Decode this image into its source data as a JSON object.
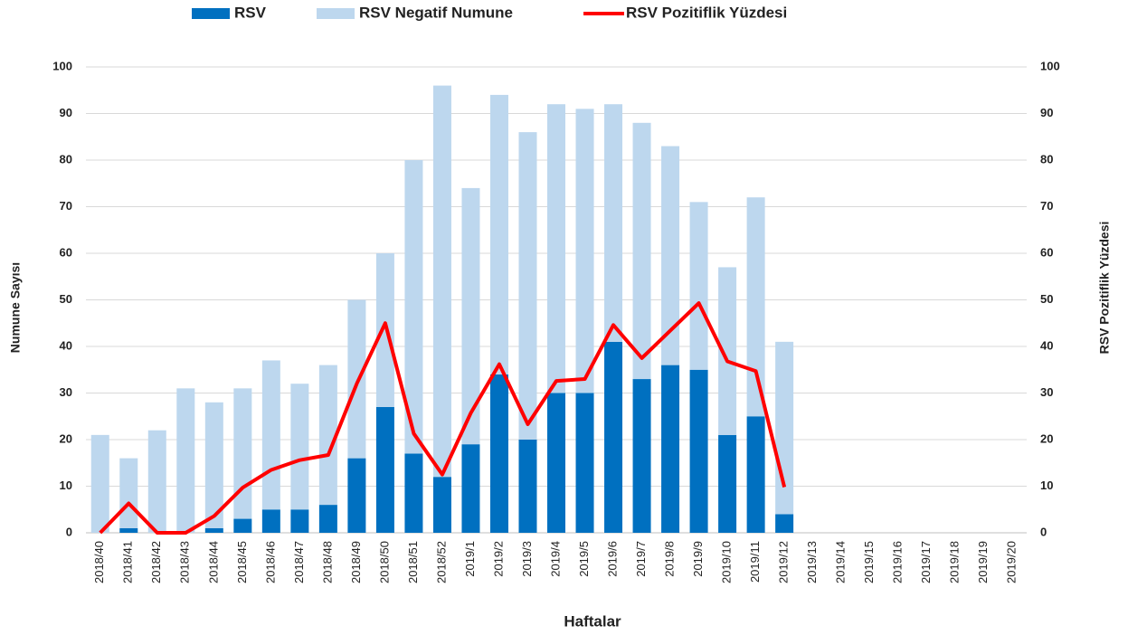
{
  "chart_data": {
    "type": "bar",
    "stacked": true,
    "categories": [
      "2018/40",
      "2018/41",
      "2018/42",
      "2018/43",
      "2018/44",
      "2018/45",
      "2018/46",
      "2018/47",
      "2018/48",
      "2018/49",
      "2018/50",
      "2018/51",
      "2018/52",
      "2019/1",
      "2019/2",
      "2019/3",
      "2019/4",
      "2019/5",
      "2019/6",
      "2019/7",
      "2019/8",
      "2019/9",
      "2019/10",
      "2019/11",
      "2019/12",
      "2019/13",
      "2019/14",
      "2019/15",
      "2019/16",
      "2019/17",
      "2019/18",
      "2019/19",
      "2019/20"
    ],
    "series": [
      {
        "name": "RSV",
        "color": "#0070c0",
        "values": [
          0,
          1,
          0,
          0,
          1,
          3,
          5,
          5,
          6,
          16,
          27,
          17,
          12,
          19,
          34,
          20,
          30,
          30,
          41,
          33,
          36,
          35,
          21,
          25,
          4,
          null,
          null,
          null,
          null,
          null,
          null,
          null,
          null
        ]
      },
      {
        "name": "RSV Negatif Numune",
        "color": "#bdd7ee",
        "values": [
          21,
          15,
          22,
          31,
          27,
          28,
          32,
          27,
          30,
          34,
          33,
          63,
          84,
          55,
          60,
          66,
          62,
          61,
          51,
          55,
          47,
          36,
          36,
          47,
          37,
          null,
          null,
          null,
          null,
          null,
          null,
          null,
          null
        ]
      },
      {
        "name": "RSV Pozitiflik Yüzdesi",
        "color": "#ff0000",
        "type": "line",
        "axis": "y2",
        "values": [
          0,
          6.3,
          0,
          0,
          3.6,
          9.7,
          13.5,
          15.6,
          16.7,
          32,
          45,
          21.3,
          12.5,
          25.7,
          36.2,
          23.3,
          32.6,
          33,
          44.6,
          37.5,
          43.4,
          49.3,
          36.8,
          34.7,
          9.8,
          null,
          null,
          null,
          null,
          null,
          null,
          null,
          null
        ]
      }
    ],
    "xlabel": "Haftalar",
    "ylabel": "Numune Sayısı",
    "y2label": "RSV Pozitiflik Yüzdesi",
    "ylim": [
      0,
      100
    ],
    "yticks": [
      0,
      10,
      20,
      30,
      40,
      50,
      60,
      70,
      80,
      90,
      100
    ],
    "y2lim": [
      0,
      100
    ],
    "y2ticks": [
      0,
      10,
      20,
      30,
      40,
      50,
      60,
      70,
      80,
      90,
      100
    ],
    "grid": true,
    "legend": "top"
  }
}
